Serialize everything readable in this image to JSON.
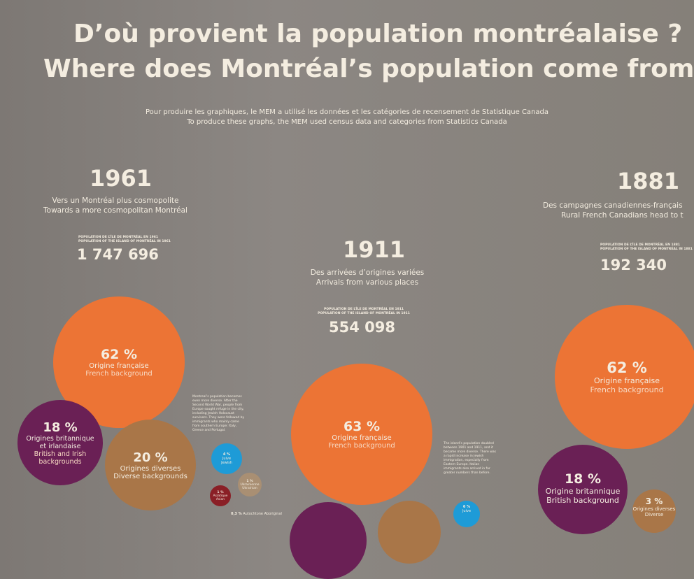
{
  "header": {
    "title_fr": "D’où provient la population montréalaise ?",
    "title_en": "Where does Montréal’s population come from",
    "note_fr": "Pour produire les graphiques, le MEM a utilisé les données et les catégories de recensement de Statistique Canada",
    "note_en": "To produce these graphs, the MEM used census data and categories from Statistics Canada"
  },
  "sections": [
    {
      "year": "1961",
      "heading_fr": "Vers un Montréal plus cosmopolite",
      "heading_en": "Towards a more cosmopolitan Montréal",
      "pop_label_fr": "POPULATION DE L’ÎLE DE MONTRÉAL EN 1961",
      "pop_label_en": "POPULATION OF THE ISLAND OF MONTRÉAL IN 1961",
      "population": "1 747 696",
      "text": "Montreal’s population becomes even more diverse. After the Second World War, people from Europe sought refuge in the city, including Jewish Holocaust survivors. They were followed by immigrants who mainly came from southern Europe: Italy, Greece and Portugal.",
      "bubbles": [
        {
          "pct": "62 %",
          "fr": "Origine française",
          "en": "French background"
        },
        {
          "pct": "18 %",
          "fr": "Origines britannique et irlandaise",
          "en": "British and Irish backgrounds"
        },
        {
          "pct": "20 %",
          "fr": "Origines diverses",
          "en": "Diverse backgrounds"
        },
        {
          "pct": "4 %",
          "fr": "Juive",
          "en": "Jewish"
        },
        {
          "pct": "1 %",
          "fr": "Ukrainienne",
          "en": "Ukrainian"
        },
        {
          "pct": "1 %",
          "fr": "Asiatique",
          "en": "Asian"
        },
        {
          "pct": "0,3 %",
          "fr": "Autochtone",
          "en": "Aboriginal"
        }
      ]
    },
    {
      "year": "1911",
      "heading_fr": "Des arrivées d’origines variées",
      "heading_en": "Arrivals from various places",
      "pop_label_fr": "POPULATION DE L’ÎLE DE MONTRÉAL EN 1911",
      "pop_label_en": "POPULATION OF THE ISLAND OF MONTRÉAL IN 1911",
      "population": "554 098",
      "text": "The island’s population doubled between 1901 and 1911, and it became more diverse. There was a rapid increase in Jewish immigration, especially from Eastern Europe. Italian immigrants also arrived in far greater numbers than before.",
      "bubbles": [
        {
          "pct": "63 %",
          "fr": "Origine française",
          "en": "French background"
        },
        {
          "pct": "6 %",
          "fr": "Juive",
          "en": "Jewish"
        }
      ]
    },
    {
      "year": "1881",
      "heading_fr": "Des campagnes canadiennes-français",
      "heading_en": "Rural French Canadians head to t",
      "pop_label_fr": "POPULATION DE L’ÎLE DE MONTRÉAL EN 1881",
      "pop_label_en": "POPULATION OF THE ISLAND OF MONTRÉAL IN 1881",
      "population": "192 340",
      "bubbles": [
        {
          "pct": "62 %",
          "fr": "Origine française",
          "en": "French background"
        },
        {
          "pct": "18 %",
          "fr": "Origine britannique",
          "en": "British background"
        },
        {
          "pct": "3 %",
          "fr": "Origines diverses",
          "en": "Diverse"
        }
      ]
    }
  ]
}
